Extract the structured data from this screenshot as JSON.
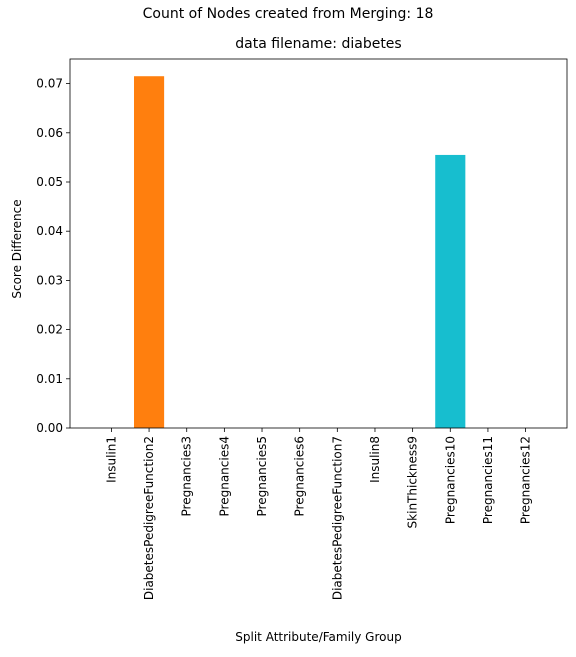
{
  "chart_data": {
    "type": "bar",
    "suptitle": "Count of Nodes created from Merging: 18",
    "title": "data filename: diabetes",
    "xlabel": "Split Attribute/Family Group",
    "ylabel": "Score Difference",
    "categories": [
      "Insulin1",
      "DiabetesPedigreeFunction2",
      "Pregnancies3",
      "Pregnancies4",
      "Pregnancies5",
      "Pregnancies6",
      "DiabetesPedigreeFunction7",
      "Insulin8",
      "SkinThickness9",
      "Pregnancies10",
      "Pregnancies11",
      "Pregnancies12"
    ],
    "values": [
      0,
      0.0715,
      0,
      0,
      0,
      0,
      0,
      0,
      0,
      0.0555,
      0,
      0
    ],
    "bar_colors": [
      "#1f77b4",
      "#ff7f0e",
      "#2ca02c",
      "#d62728",
      "#9467bd",
      "#8c564b",
      "#e377c2",
      "#7f7f7f",
      "#bcbd22",
      "#17becf",
      "#1f77b4",
      "#ff7f0e"
    ],
    "ylim": [
      0,
      0.075
    ],
    "yticks": [
      0.0,
      0.01,
      0.02,
      0.03,
      0.04,
      0.05,
      0.06,
      0.07
    ],
    "ytick_labels": [
      "0.00",
      "0.01",
      "0.02",
      "0.03",
      "0.04",
      "0.05",
      "0.06",
      "0.07"
    ],
    "grid": false,
    "legend": "none"
  }
}
